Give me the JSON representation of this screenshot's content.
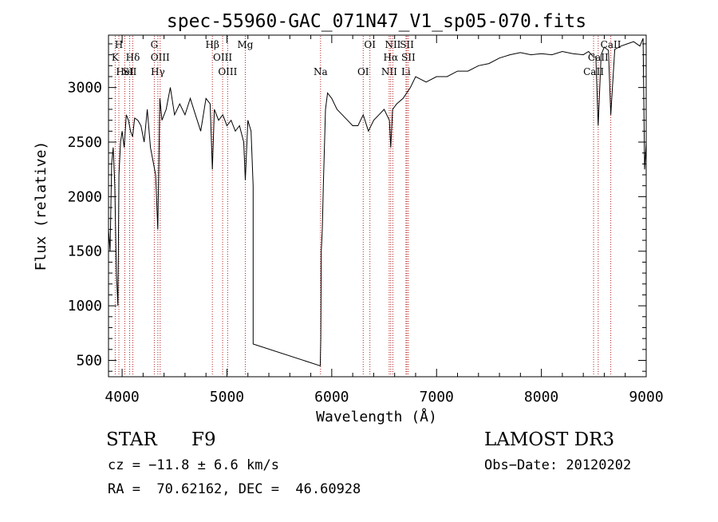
{
  "chart_data": {
    "type": "line",
    "title": "spec-55960-GAC_071N47_V1_sp05-070.fits",
    "xlabel": "Wavelength (Å)",
    "ylabel": "Flux (relative)",
    "xlim": [
      3870,
      9000
    ],
    "ylim": [
      350,
      3480
    ],
    "x_ticks": [
      4000,
      5000,
      6000,
      7000,
      8000,
      9000
    ],
    "y_ticks": [
      500,
      1000,
      1500,
      2000,
      2500,
      3000
    ],
    "x_tick_labels": [
      "4000",
      "5000",
      "6000",
      "7000",
      "8000",
      "9000"
    ],
    "y_tick_labels": [
      "500",
      "1000",
      "1500",
      "2000",
      "2500",
      "3000"
    ],
    "grid": false,
    "legend": "none",
    "line_color": "#000000",
    "marker_color": "#b22222",
    "series": [
      {
        "x": [
          3870,
          3885,
          3900,
          3915,
          3930,
          3945,
          3960,
          3970,
          3985,
          4000,
          4020,
          4040,
          4060,
          4080,
          4100,
          4120,
          4150,
          4180,
          4210,
          4240,
          4270,
          4300,
          4320,
          4340,
          4360,
          4380,
          4420,
          4460,
          4500,
          4550,
          4600,
          4650,
          4700,
          4750,
          4800,
          4840,
          4861,
          4880,
          4920,
          4960,
          5000,
          5040,
          5080,
          5120,
          5160,
          5175,
          5200,
          5230,
          5250,
          5250,
          5890,
          5895,
          5900,
          5910,
          5920,
          5940,
          5960,
          6000,
          6050,
          6100,
          6150,
          6200,
          6250,
          6300,
          6350,
          6400,
          6450,
          6500,
          6550,
          6563,
          6580,
          6620,
          6680,
          6750,
          6800,
          6900,
          7000,
          7100,
          7200,
          7300,
          7400,
          7500,
          7600,
          7700,
          7800,
          7900,
          8000,
          8100,
          8200,
          8300,
          8400,
          8450,
          8498,
          8520,
          8542,
          8570,
          8600,
          8640,
          8662,
          8700,
          8760,
          8820,
          8880,
          8940,
          8970,
          8985,
          9000
        ],
        "values": [
          1700,
          1500,
          2300,
          2450,
          2100,
          1300,
          1000,
          2200,
          2500,
          2600,
          2450,
          2750,
          2700,
          2600,
          2550,
          2720,
          2700,
          2650,
          2500,
          2800,
          2450,
          2300,
          2200,
          1700,
          2900,
          2700,
          2800,
          3000,
          2750,
          2850,
          2750,
          2900,
          2750,
          2600,
          2900,
          2850,
          2250,
          2800,
          2700,
          2750,
          2650,
          2700,
          2600,
          2650,
          2500,
          2150,
          2700,
          2600,
          2100,
          650,
          450,
          700,
          1500,
          1700,
          2100,
          2800,
          2950,
          2900,
          2800,
          2750,
          2700,
          2650,
          2650,
          2750,
          2600,
          2700,
          2750,
          2800,
          2700,
          2450,
          2800,
          2850,
          2900,
          3000,
          3100,
          3050,
          3100,
          3100,
          3150,
          3150,
          3200,
          3220,
          3270,
          3300,
          3320,
          3300,
          3310,
          3300,
          3330,
          3310,
          3300,
          3330,
          3280,
          3280,
          2650,
          3300,
          3370,
          3340,
          2750,
          3350,
          3380,
          3400,
          3420,
          3380,
          3450,
          2250,
          2500
        ]
      }
    ],
    "lines": [
      {
        "x": 3934,
        "label": "K"
      },
      {
        "x": 3969,
        "label": "H"
      },
      {
        "x": 4026,
        "label": "HeI"
      },
      {
        "x": 4102,
        "label": "Hδ"
      },
      {
        "x": 4072,
        "label": "SII"
      },
      {
        "x": 4307,
        "label": "G"
      },
      {
        "x": 4341,
        "label": "Hγ"
      },
      {
        "x": 4363,
        "label": "OIII"
      },
      {
        "x": 4861,
        "label": "Hβ"
      },
      {
        "x": 4959,
        "label": "OIII"
      },
      {
        "x": 5007,
        "label": "OIII"
      },
      {
        "x": 5175,
        "label": "Mg"
      },
      {
        "x": 5893,
        "label": "Na"
      },
      {
        "x": 6300,
        "label": "OI"
      },
      {
        "x": 6364,
        "label": "OI"
      },
      {
        "x": 6548,
        "label": "NII"
      },
      {
        "x": 6563,
        "label": "Hα"
      },
      {
        "x": 6583,
        "label": "NII"
      },
      {
        "x": 6708,
        "label": "Li"
      },
      {
        "x": 6717,
        "label": "SII"
      },
      {
        "x": 6731,
        "label": "SII"
      },
      {
        "x": 8498,
        "label": "CaII"
      },
      {
        "x": 8542,
        "label": "CaII"
      },
      {
        "x": 8662,
        "label": "CaII"
      }
    ]
  },
  "info": {
    "class": "STAR",
    "subclass": "F9",
    "survey": "LAMOST DR3",
    "cz": "cz = −11.8 ± 6.6 km/s",
    "obs_date": "Obs−Date: 20120202",
    "coords": "RA =  70.62162, DEC =  46.60928"
  }
}
